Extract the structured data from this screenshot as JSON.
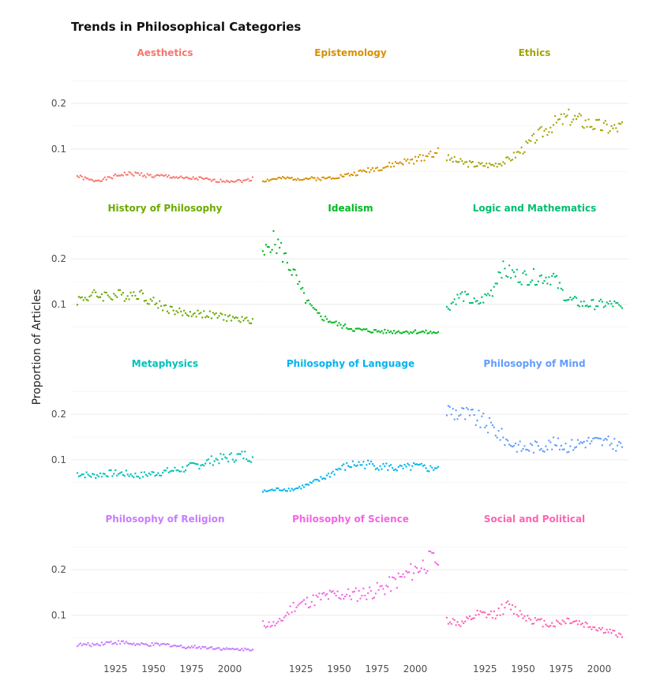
{
  "chart_data": {
    "type": "scatter",
    "title": "Trends in Philosophical Categories",
    "ylabel": "Proportion of Articles",
    "xlabel": "",
    "xlim": [
      1900,
      2015
    ],
    "ylim": [
      0.02,
      0.28
    ],
    "x_ticks": [
      1925,
      1950,
      1975,
      2000
    ],
    "y_ticks": [
      0.1,
      0.2
    ],
    "y_tick_labels": [
      "0.1",
      "0.2"
    ],
    "grid": true,
    "legend": "none",
    "layout": "facets 4 rows x 3 columns",
    "panels": [
      {
        "name": "Aesthetics",
        "color": "#F8766D",
        "points": [
          [
            1900,
            0.04
          ],
          [
            1910,
            0.03
          ],
          [
            1920,
            0.035
          ],
          [
            1930,
            0.045
          ],
          [
            1940,
            0.045
          ],
          [
            1950,
            0.04
          ],
          [
            1960,
            0.04
          ],
          [
            1970,
            0.035
          ],
          [
            1980,
            0.035
          ],
          [
            1990,
            0.03
          ],
          [
            2000,
            0.03
          ],
          [
            2010,
            0.03
          ],
          [
            2015,
            0.035
          ]
        ]
      },
      {
        "name": "Epistemology",
        "color": "#D89000",
        "points": [
          [
            1900,
            0.03
          ],
          [
            1910,
            0.035
          ],
          [
            1920,
            0.035
          ],
          [
            1930,
            0.035
          ],
          [
            1940,
            0.035
          ],
          [
            1950,
            0.04
          ],
          [
            1960,
            0.045
          ],
          [
            1970,
            0.055
          ],
          [
            1980,
            0.06
          ],
          [
            1990,
            0.07
          ],
          [
            2000,
            0.075
          ],
          [
            2010,
            0.09
          ],
          [
            2015,
            0.095
          ]
        ]
      },
      {
        "name": "Ethics",
        "color": "#A3A500",
        "points": [
          [
            1900,
            0.08
          ],
          [
            1910,
            0.07
          ],
          [
            1920,
            0.065
          ],
          [
            1930,
            0.065
          ],
          [
            1940,
            0.075
          ],
          [
            1950,
            0.1
          ],
          [
            1960,
            0.13
          ],
          [
            1970,
            0.155
          ],
          [
            1980,
            0.17
          ],
          [
            1990,
            0.16
          ],
          [
            2000,
            0.15
          ],
          [
            2010,
            0.145
          ],
          [
            2015,
            0.15
          ]
        ]
      },
      {
        "name": "History of Philosophy",
        "color": "#6BAB00",
        "points": [
          [
            1900,
            0.11
          ],
          [
            1910,
            0.12
          ],
          [
            1920,
            0.12
          ],
          [
            1930,
            0.12
          ],
          [
            1940,
            0.125
          ],
          [
            1950,
            0.105
          ],
          [
            1960,
            0.09
          ],
          [
            1970,
            0.08
          ],
          [
            1980,
            0.08
          ],
          [
            1990,
            0.075
          ],
          [
            2000,
            0.07
          ],
          [
            2010,
            0.065
          ],
          [
            2015,
            0.065
          ]
        ]
      },
      {
        "name": "Idealism",
        "color": "#00B81F",
        "points": [
          [
            1900,
            0.2
          ],
          [
            1905,
            0.24
          ],
          [
            1910,
            0.23
          ],
          [
            1915,
            0.2
          ],
          [
            1920,
            0.17
          ],
          [
            1925,
            0.13
          ],
          [
            1930,
            0.1
          ],
          [
            1935,
            0.08
          ],
          [
            1940,
            0.07
          ],
          [
            1950,
            0.055
          ],
          [
            1960,
            0.045
          ],
          [
            1970,
            0.042
          ],
          [
            1980,
            0.04
          ],
          [
            1990,
            0.04
          ],
          [
            2000,
            0.04
          ],
          [
            2010,
            0.038
          ],
          [
            2015,
            0.038
          ]
        ]
      },
      {
        "name": "Logic and Mathematics",
        "color": "#00BE70",
        "points": [
          [
            1900,
            0.09
          ],
          [
            1905,
            0.11
          ],
          [
            1910,
            0.12
          ],
          [
            1920,
            0.1
          ],
          [
            1930,
            0.13
          ],
          [
            1935,
            0.18
          ],
          [
            1940,
            0.17
          ],
          [
            1950,
            0.16
          ],
          [
            1960,
            0.16
          ],
          [
            1970,
            0.16
          ],
          [
            1975,
            0.13
          ],
          [
            1980,
            0.11
          ],
          [
            1990,
            0.1
          ],
          [
            2000,
            0.1
          ],
          [
            2010,
            0.1
          ],
          [
            2015,
            0.09
          ]
        ]
      },
      {
        "name": "Metaphysics",
        "color": "#00C0B8",
        "points": [
          [
            1900,
            0.07
          ],
          [
            1910,
            0.065
          ],
          [
            1920,
            0.07
          ],
          [
            1930,
            0.07
          ],
          [
            1940,
            0.065
          ],
          [
            1950,
            0.07
          ],
          [
            1960,
            0.075
          ],
          [
            1970,
            0.08
          ],
          [
            1980,
            0.09
          ],
          [
            1990,
            0.1
          ],
          [
            2000,
            0.105
          ],
          [
            2010,
            0.11
          ],
          [
            2015,
            0.105
          ]
        ]
      },
      {
        "name": "Philosophy of Language",
        "color": "#00B4EF",
        "points": [
          [
            1900,
            0.03
          ],
          [
            1910,
            0.035
          ],
          [
            1920,
            0.035
          ],
          [
            1930,
            0.045
          ],
          [
            1940,
            0.06
          ],
          [
            1950,
            0.08
          ],
          [
            1960,
            0.09
          ],
          [
            1970,
            0.09
          ],
          [
            1980,
            0.085
          ],
          [
            1990,
            0.08
          ],
          [
            2000,
            0.085
          ],
          [
            2010,
            0.08
          ],
          [
            2015,
            0.085
          ]
        ]
      },
      {
        "name": "Philosophy of Mind",
        "color": "#619CFF",
        "points": [
          [
            1900,
            0.21
          ],
          [
            1910,
            0.2
          ],
          [
            1920,
            0.19
          ],
          [
            1930,
            0.17
          ],
          [
            1940,
            0.14
          ],
          [
            1950,
            0.125
          ],
          [
            1960,
            0.13
          ],
          [
            1970,
            0.135
          ],
          [
            1980,
            0.13
          ],
          [
            1990,
            0.14
          ],
          [
            2000,
            0.14
          ],
          [
            2010,
            0.135
          ],
          [
            2015,
            0.13
          ]
        ]
      },
      {
        "name": "Philosophy of Religion",
        "color": "#C77CFF",
        "points": [
          [
            1900,
            0.035
          ],
          [
            1910,
            0.035
          ],
          [
            1920,
            0.04
          ],
          [
            1930,
            0.04
          ],
          [
            1940,
            0.035
          ],
          [
            1950,
            0.035
          ],
          [
            1960,
            0.035
          ],
          [
            1970,
            0.03
          ],
          [
            1980,
            0.03
          ],
          [
            1990,
            0.028
          ],
          [
            2000,
            0.025
          ],
          [
            2010,
            0.025
          ],
          [
            2015,
            0.025
          ]
        ]
      },
      {
        "name": "Philosophy of Science",
        "color": "#F564E3",
        "points": [
          [
            1900,
            0.08
          ],
          [
            1910,
            0.08
          ],
          [
            1920,
            0.12
          ],
          [
            1930,
            0.13
          ],
          [
            1940,
            0.14
          ],
          [
            1950,
            0.145
          ],
          [
            1960,
            0.145
          ],
          [
            1970,
            0.15
          ],
          [
            1980,
            0.16
          ],
          [
            1990,
            0.18
          ],
          [
            2000,
            0.2
          ],
          [
            2010,
            0.22
          ],
          [
            2015,
            0.22
          ]
        ]
      },
      {
        "name": "Social and Political",
        "color": "#FF64B0",
        "points": [
          [
            1900,
            0.09
          ],
          [
            1910,
            0.08
          ],
          [
            1920,
            0.1
          ],
          [
            1930,
            0.1
          ],
          [
            1940,
            0.12
          ],
          [
            1950,
            0.1
          ],
          [
            1960,
            0.085
          ],
          [
            1970,
            0.08
          ],
          [
            1980,
            0.09
          ],
          [
            1990,
            0.08
          ],
          [
            2000,
            0.07
          ],
          [
            2010,
            0.06
          ],
          [
            2015,
            0.055
          ]
        ]
      }
    ]
  }
}
